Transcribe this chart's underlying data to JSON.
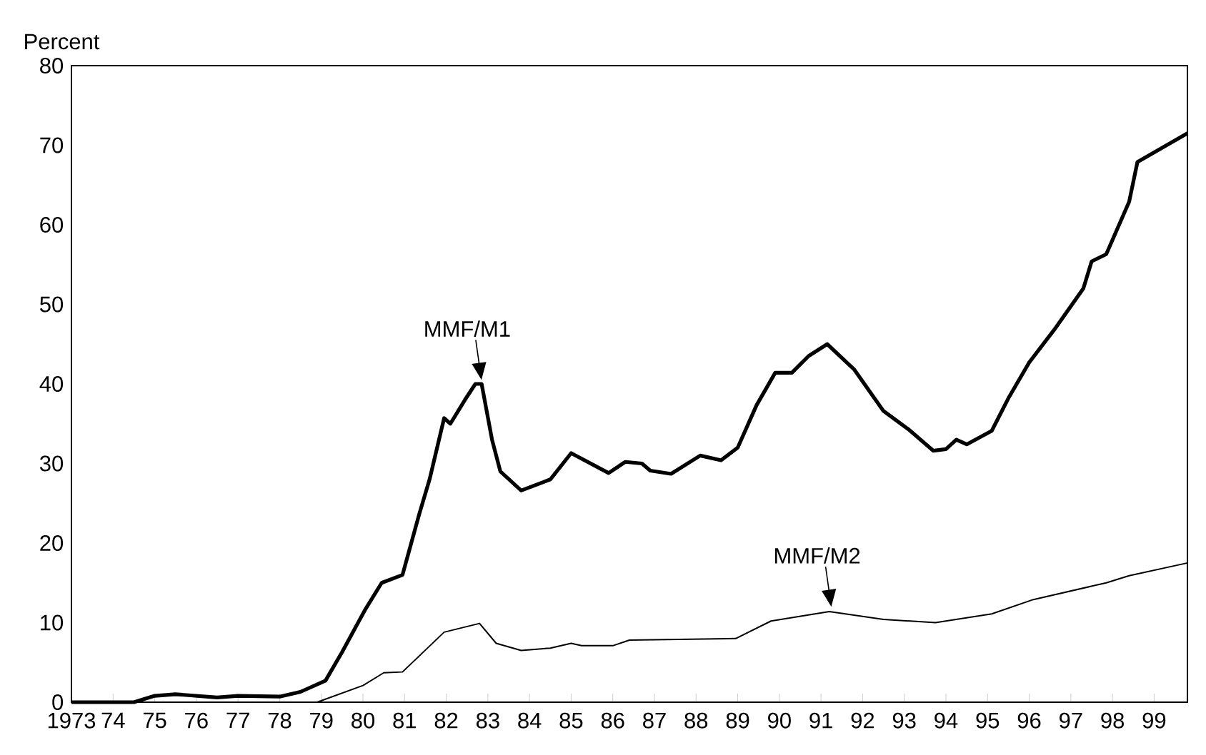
{
  "chart_data": {
    "type": "line",
    "ylabel": "Percent",
    "xlim": [
      1973,
      1999.8
    ],
    "ylim": [
      0,
      80
    ],
    "xticks": [
      {
        "value": 1973,
        "label": "1973"
      },
      {
        "value": 1974,
        "label": "74"
      },
      {
        "value": 1975,
        "label": "75"
      },
      {
        "value": 1976,
        "label": "76"
      },
      {
        "value": 1977,
        "label": "77"
      },
      {
        "value": 1978,
        "label": "78"
      },
      {
        "value": 1979,
        "label": "79"
      },
      {
        "value": 1980,
        "label": "80"
      },
      {
        "value": 1981,
        "label": "81"
      },
      {
        "value": 1982,
        "label": "82"
      },
      {
        "value": 1983,
        "label": "83"
      },
      {
        "value": 1984,
        "label": "84"
      },
      {
        "value": 1985,
        "label": "85"
      },
      {
        "value": 1986,
        "label": "86"
      },
      {
        "value": 1987,
        "label": "87"
      },
      {
        "value": 1988,
        "label": "88"
      },
      {
        "value": 1989,
        "label": "89"
      },
      {
        "value": 1990,
        "label": "90"
      },
      {
        "value": 1991,
        "label": "91"
      },
      {
        "value": 1992,
        "label": "92"
      },
      {
        "value": 1993,
        "label": "93"
      },
      {
        "value": 1994,
        "label": "94"
      },
      {
        "value": 1995,
        "label": "95"
      },
      {
        "value": 1996,
        "label": "96"
      },
      {
        "value": 1997,
        "label": "97"
      },
      {
        "value": 1998,
        "label": "98"
      },
      {
        "value": 1999,
        "label": "99"
      }
    ],
    "yticks": [
      0,
      10,
      20,
      30,
      40,
      50,
      60,
      70,
      80
    ],
    "grid": false,
    "legend": false,
    "marker": "none",
    "line_style": "solid",
    "series": [
      {
        "name": "MMF/M1",
        "color": "#000000",
        "x": [
          1973,
          1974.5,
          1975.0,
          1975.5,
          1976.5,
          1977.0,
          1978.0,
          1978.5,
          1979.1,
          1979.5,
          1980.05,
          1980.45,
          1980.95,
          1981.35,
          1981.6,
          1981.95,
          1982.1,
          1982.45,
          1982.7,
          1982.85,
          1983.1,
          1983.3,
          1983.8,
          1984.5,
          1985.0,
          1985.9,
          1986.3,
          1986.7,
          1986.9,
          1987.4,
          1988.1,
          1988.6,
          1989.0,
          1989.45,
          1989.9,
          1990.3,
          1990.7,
          1991.15,
          1991.8,
          1992.5,
          1993.1,
          1993.7,
          1994.0,
          1994.25,
          1994.5,
          1995.1,
          1995.5,
          1996.0,
          1996.6,
          1997.3,
          1997.5,
          1997.85,
          1998.4,
          1998.6,
          1999.8
        ],
        "values": [
          0,
          0,
          0.8,
          1.0,
          0.6,
          0.8,
          0.7,
          1.3,
          2.7,
          6.3,
          11.6,
          15,
          16,
          23.6,
          28,
          35.7,
          35,
          38,
          40,
          40,
          33,
          29,
          26.6,
          28,
          31.3,
          28.8,
          30.2,
          30,
          29.1,
          28.7,
          31,
          30.4,
          32,
          37.3,
          41.4,
          41.4,
          43.5,
          45,
          41.8,
          36.6,
          34.3,
          31.6,
          31.8,
          33,
          32.4,
          34.1,
          38.2,
          42.7,
          46.8,
          52,
          55.4,
          56.3,
          62.9,
          67.9,
          71.5
        ]
      },
      {
        "name": "MMF/M2",
        "color": "#000000",
        "x": [
          1973,
          1978.9,
          1980.0,
          1980.5,
          1980.95,
          1981.95,
          1982.8,
          1983.2,
          1983.8,
          1984.5,
          1985.0,
          1985.25,
          1986.0,
          1986.4,
          1988.95,
          1989.8,
          1991.2,
          1992.5,
          1993.75,
          1995.1,
          1996.1,
          1997.85,
          1998.4,
          1999.8
        ],
        "values": [
          0,
          0,
          2.1,
          3.7,
          3.8,
          8.8,
          9.9,
          7.4,
          6.5,
          6.8,
          7.4,
          7.1,
          7.1,
          7.8,
          8.0,
          10.2,
          11.4,
          10.4,
          10.0,
          11.1,
          12.9,
          15,
          15.9,
          17.5
        ]
      }
    ]
  }
}
